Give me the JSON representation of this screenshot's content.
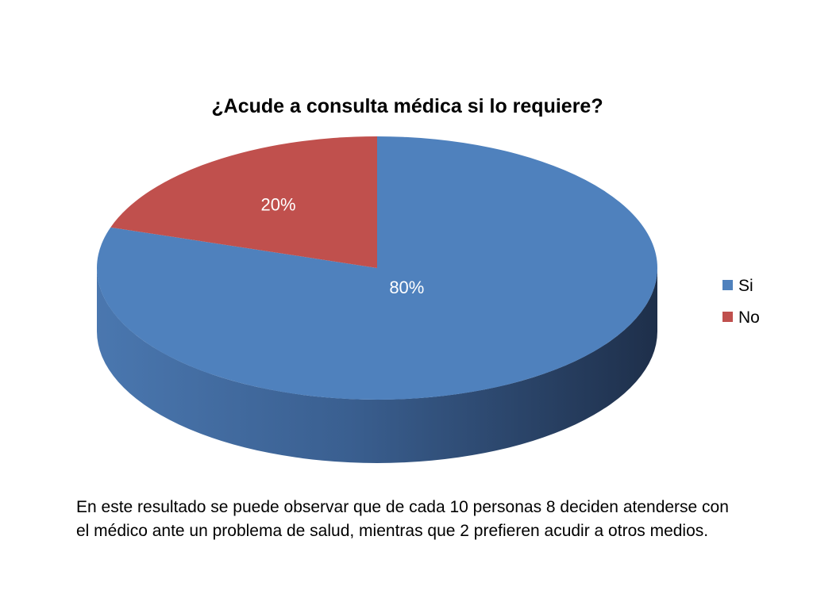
{
  "chart_data": {
    "type": "pie",
    "title": "¿Acude a consulta médica si lo requiere?",
    "categories": [
      "Si",
      "No"
    ],
    "values": [
      80,
      20
    ],
    "value_labels": [
      "80%",
      "20%"
    ],
    "colors": [
      "#4F81BD",
      "#C0504D"
    ],
    "legend": {
      "placement": "right",
      "entries": [
        "Si",
        "No"
      ]
    },
    "style": "3d"
  },
  "caption": "En este resultado se puede observar que de cada 10 personas 8 deciden atenderse con el médico ante un problema de salud, mientras que 2 prefieren acudir a otros medios."
}
